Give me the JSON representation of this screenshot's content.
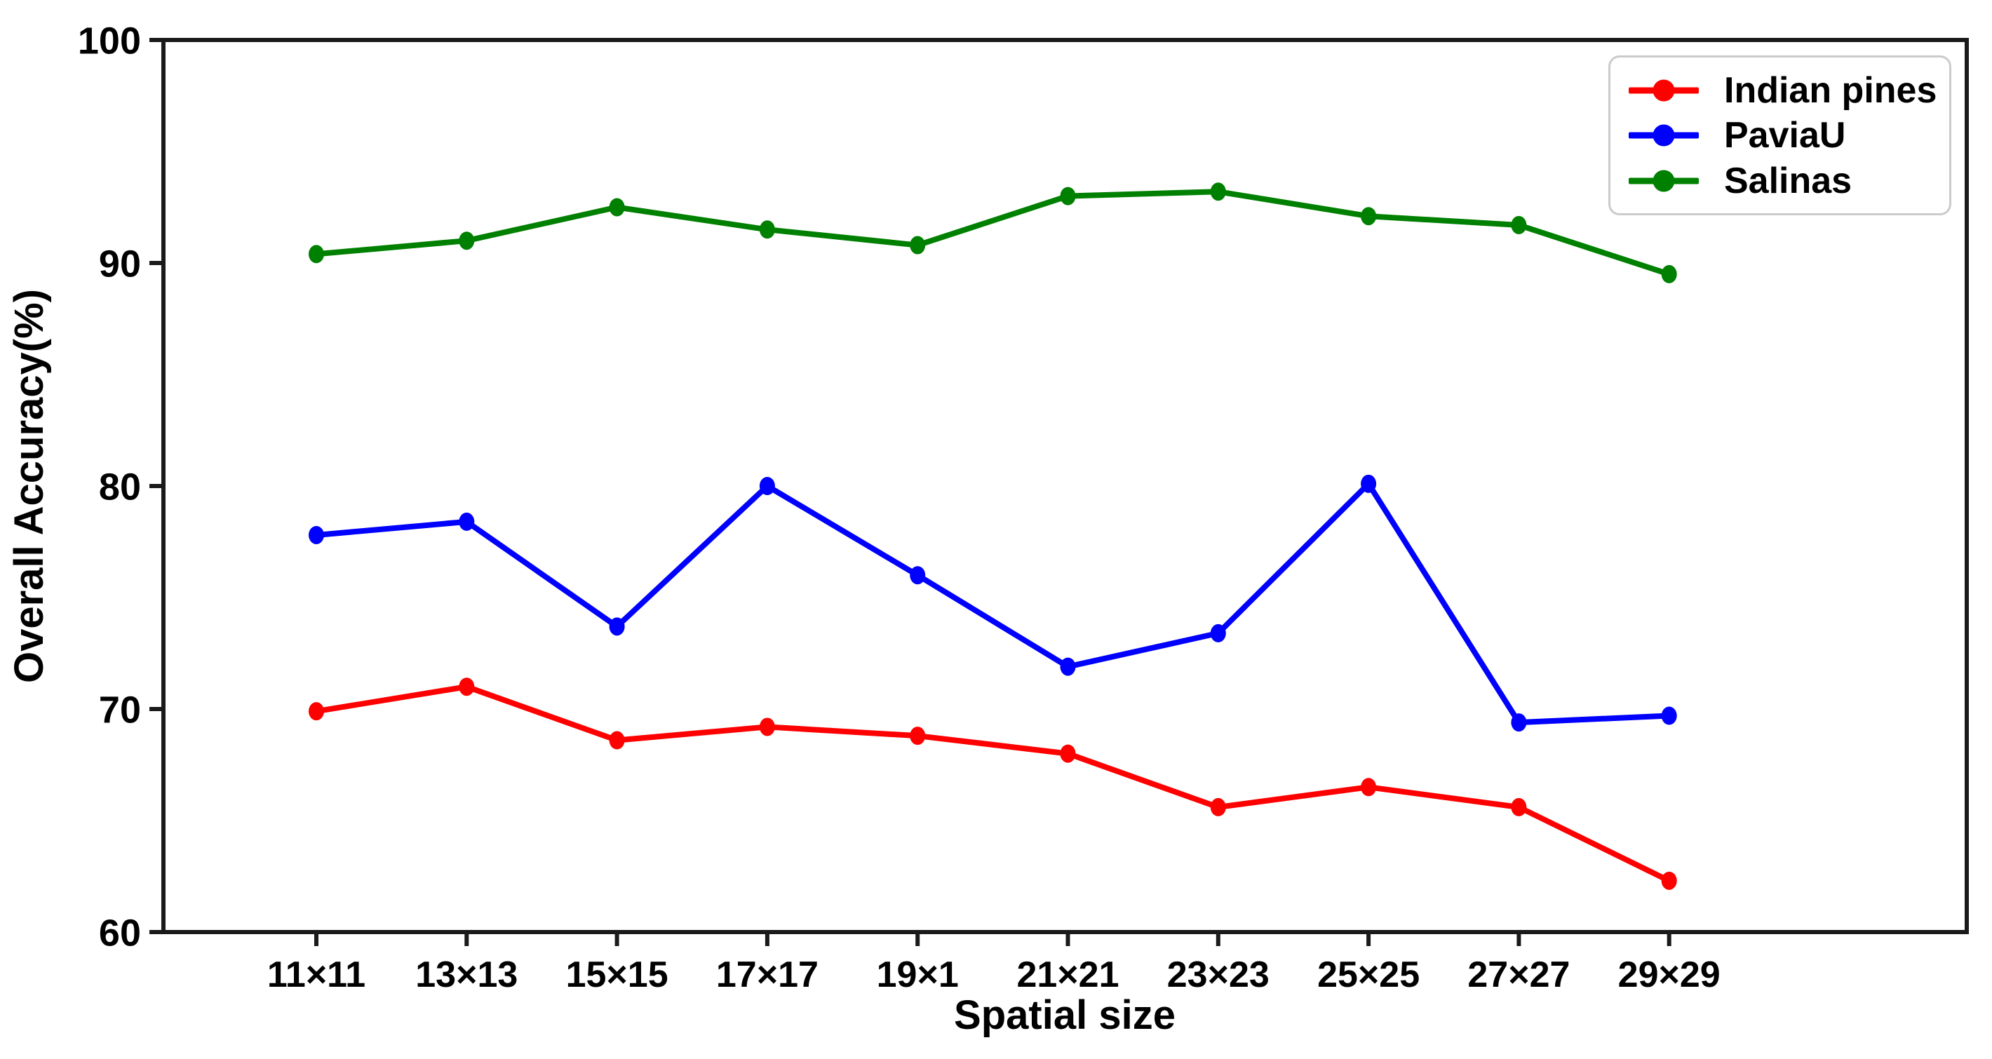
{
  "figure": {
    "background": "#ffffff",
    "axis_color": "#1a1a1a",
    "text_color": "#000000",
    "legend_border_color": "#cbcbcb"
  },
  "chart_data": {
    "type": "line",
    "title": "",
    "xlabel": "Spatial size",
    "ylabel": "Overall Accuracy(%)",
    "categories": [
      "11×11",
      "13×13",
      "15×15",
      "17×17",
      "19×1",
      "21×21",
      "23×23",
      "25×25",
      "27×27",
      "29×29"
    ],
    "series": [
      {
        "name": "Indian pines",
        "color": "#ff0000",
        "values": [
          69.9,
          71.0,
          68.6,
          69.2,
          68.8,
          68.0,
          65.6,
          66.5,
          65.6,
          62.3
        ]
      },
      {
        "name": "PaviaU",
        "color": "#0000ff",
        "values": [
          77.8,
          78.4,
          73.7,
          80.0,
          76.0,
          71.9,
          73.4,
          80.1,
          69.4,
          69.7
        ]
      },
      {
        "name": "Salinas",
        "color": "#008000",
        "values": [
          90.4,
          91.0,
          92.5,
          91.5,
          90.8,
          93.0,
          93.2,
          92.1,
          91.7,
          89.5
        ]
      }
    ],
    "ylim": [
      60,
      100
    ],
    "yticks": [
      60,
      70,
      80,
      90,
      100
    ],
    "grid": false,
    "legend_position": "upper right",
    "marker": "circle"
  }
}
